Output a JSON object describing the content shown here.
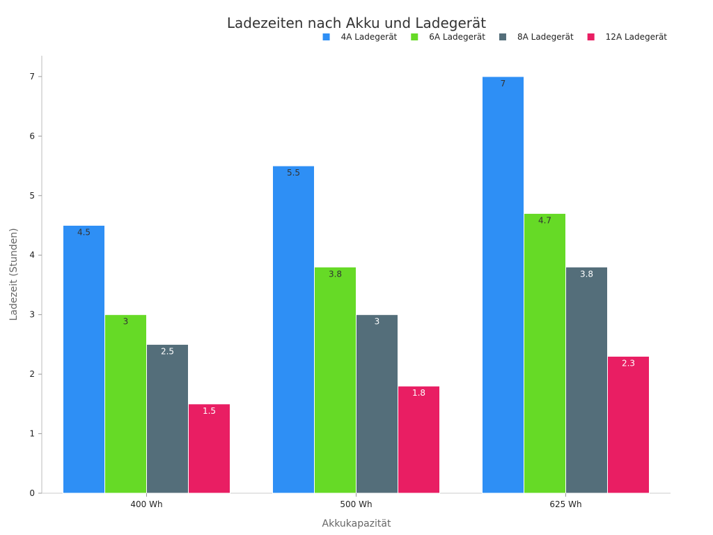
{
  "chart_data": {
    "type": "bar",
    "title": "Ladezeiten nach Akku und Ladegerät",
    "xlabel": "Akkukapazität",
    "ylabel": "Ladezeit (Stunden)",
    "categories": [
      "400 Wh",
      "500 Wh",
      "625 Wh"
    ],
    "ylim": [
      0,
      7.35
    ],
    "yticks": [
      "0",
      "1",
      "2",
      "3",
      "4",
      "5",
      "6",
      "7"
    ],
    "grid": false,
    "legend_position": "top-right",
    "series": [
      {
        "name": "4A Ladegerät",
        "color": "#2e8ff5",
        "label_color": "#333333",
        "values": [
          4.5,
          5.5,
          7
        ],
        "labels": [
          "4.5",
          "5.5",
          "7"
        ]
      },
      {
        "name": "6A Ladegerät",
        "color": "#66da26",
        "label_color": "#333333",
        "values": [
          3,
          3.8,
          4.7
        ],
        "labels": [
          "3",
          "3.8",
          "4.7"
        ]
      },
      {
        "name": "8A Ladegerät",
        "color": "#546e7a",
        "label_color": "#ffffff",
        "values": [
          2.5,
          3,
          3.8
        ],
        "labels": [
          "2.5",
          "3",
          "3.8"
        ]
      },
      {
        "name": "12A Ladegerät",
        "color": "#e91e63",
        "label_color": "#ffffff",
        "values": [
          1.5,
          1.8,
          2.3
        ],
        "labels": [
          "1.5",
          "1.8",
          "2.3"
        ]
      }
    ]
  }
}
